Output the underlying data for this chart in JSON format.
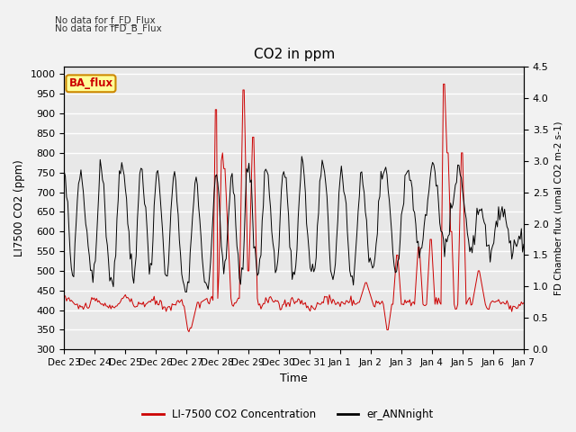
{
  "title": "CO2 in ppm",
  "xlabel": "Time",
  "ylabel_left": "LI7500 CO2 (ppm)",
  "ylabel_right": "FD Chamber flux (umal CO2 m-2 s-1)",
  "ylim_left": [
    300,
    1020
  ],
  "ylim_right": [
    0.0,
    4.5
  ],
  "yticks_left": [
    300,
    350,
    400,
    450,
    500,
    550,
    600,
    650,
    700,
    750,
    800,
    850,
    900,
    950,
    1000
  ],
  "yticks_right": [
    0.0,
    0.5,
    1.0,
    1.5,
    2.0,
    2.5,
    3.0,
    3.5,
    4.0,
    4.5
  ],
  "xtick_labels": [
    "Dec 23",
    "Dec 24",
    "Dec 25",
    "Dec 26",
    "Dec 27",
    "Dec 28",
    "Dec 29",
    "Dec 30",
    "Dec 31",
    "Jan 1",
    "Jan 2",
    "Jan 3",
    "Jan 4",
    "Jan 5",
    "Jan 6",
    "Jan 7"
  ],
  "note1": "No data for f_FD_Flux",
  "note2": "No data for f̅FD̅_B_Flux",
  "ba_flux_label": "BA_flux",
  "legend_red_label": "LI-7500 CO2 Concentration",
  "legend_black_label": "er_ANNnight",
  "line_red_color": "#cc0000",
  "line_black_color": "#000000",
  "ba_box_facecolor": "#ffff99",
  "ba_box_edgecolor": "#cc8800",
  "ba_text_color": "#cc0000",
  "plot_bg_color": "#e8e8e8",
  "grid_color": "#ffffff"
}
